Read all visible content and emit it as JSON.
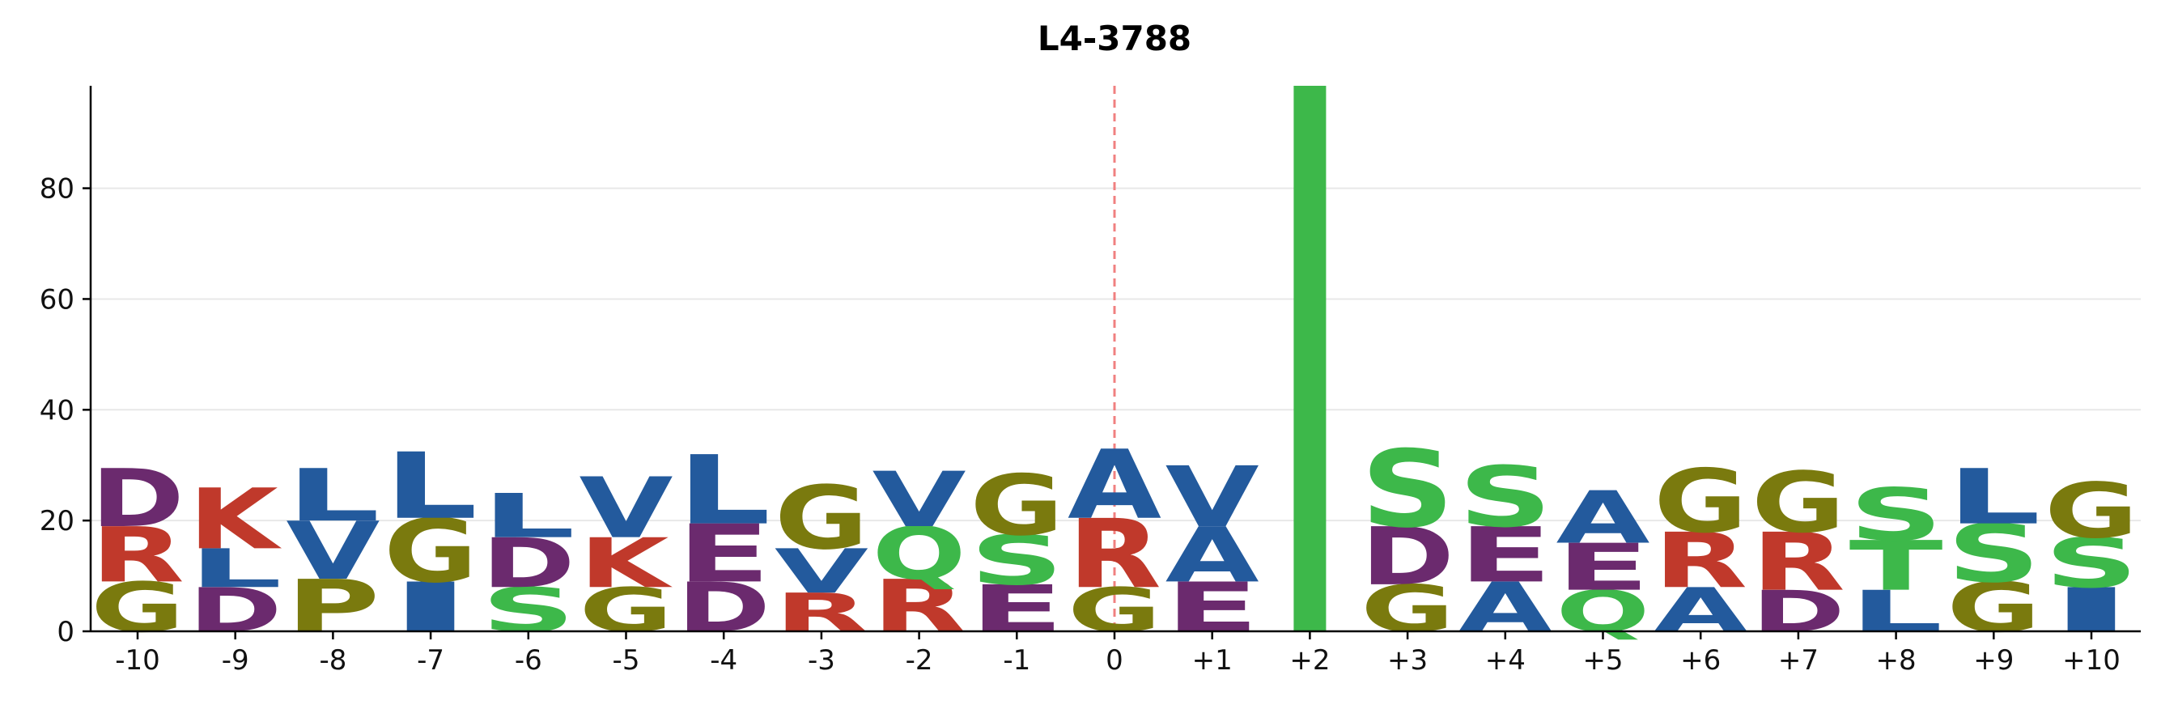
{
  "chart_data": {
    "type": "sequence_logo",
    "title": "L4-3788",
    "positions": [
      "-10",
      "-9",
      "-8",
      "-7",
      "-6",
      "-5",
      "-4",
      "-3",
      "-2",
      "-1",
      "0",
      "+1",
      "+2",
      "+3",
      "+4",
      "+5",
      "+6",
      "+7",
      "+8",
      "+9",
      "+10"
    ],
    "yticks": [
      0,
      20,
      40,
      60,
      80
    ],
    "ylim": [
      0,
      98.5
    ],
    "grid": true,
    "reference_position": "0",
    "stacks": [
      [
        {
          "aa": "G",
          "v": 9
        },
        {
          "aa": "R",
          "v": 10
        },
        {
          "aa": "D",
          "v": 10.5
        }
      ],
      [
        {
          "aa": "D",
          "v": 8
        },
        {
          "aa": "L",
          "v": 7
        },
        {
          "aa": "K",
          "v": 11
        }
      ],
      [
        {
          "aa": "P",
          "v": 9.5
        },
        {
          "aa": "V",
          "v": 10.5
        },
        {
          "aa": "L",
          "v": 9.5
        }
      ],
      [
        {
          "aa": "I",
          "v": 9
        },
        {
          "aa": "G",
          "v": 11.5
        },
        {
          "aa": "L",
          "v": 12
        }
      ],
      [
        {
          "aa": "S",
          "v": 8
        },
        {
          "aa": "D",
          "v": 9
        },
        {
          "aa": "L",
          "v": 8
        }
      ],
      [
        {
          "aa": "G",
          "v": 8
        },
        {
          "aa": "K",
          "v": 9
        },
        {
          "aa": "V",
          "v": 11
        }
      ],
      [
        {
          "aa": "D",
          "v": 9
        },
        {
          "aa": "E",
          "v": 10.5
        },
        {
          "aa": "L",
          "v": 12.5
        }
      ],
      [
        {
          "aa": "R",
          "v": 7
        },
        {
          "aa": "V",
          "v": 8
        },
        {
          "aa": "G",
          "v": 11.5
        }
      ],
      [
        {
          "aa": "R",
          "v": 9.5
        },
        {
          "aa": "Q",
          "v": 9.5
        },
        {
          "aa": "V",
          "v": 10
        }
      ],
      [
        {
          "aa": "E",
          "v": 8.5
        },
        {
          "aa": "S",
          "v": 9
        },
        {
          "aa": "G",
          "v": 11
        }
      ],
      [
        {
          "aa": "G",
          "v": 8
        },
        {
          "aa": "R",
          "v": 12.5
        },
        {
          "aa": "A",
          "v": 12.5
        }
      ],
      [
        {
          "aa": "E",
          "v": 9
        },
        {
          "aa": "A",
          "v": 10
        },
        {
          "aa": "V",
          "v": 11
        }
      ],
      [
        {
          "aa": "T",
          "v": 98.5
        }
      ],
      [
        {
          "aa": "G",
          "v": 8.5
        },
        {
          "aa": "D",
          "v": 10.5
        },
        {
          "aa": "S",
          "v": 14
        }
      ],
      [
        {
          "aa": "A",
          "v": 9
        },
        {
          "aa": "E",
          "v": 10
        },
        {
          "aa": "S",
          "v": 11
        }
      ],
      [
        {
          "aa": "Q",
          "v": 7.5
        },
        {
          "aa": "E",
          "v": 8.5
        },
        {
          "aa": "A",
          "v": 9.5
        }
      ],
      [
        {
          "aa": "A",
          "v": 8
        },
        {
          "aa": "R",
          "v": 10
        },
        {
          "aa": "G",
          "v": 11.5
        }
      ],
      [
        {
          "aa": "D",
          "v": 7.5
        },
        {
          "aa": "R",
          "v": 10.5
        },
        {
          "aa": "G",
          "v": 11
        }
      ],
      [
        {
          "aa": "L",
          "v": 7.5
        },
        {
          "aa": "T",
          "v": 9
        },
        {
          "aa": "S",
          "v": 9.5
        }
      ],
      [
        {
          "aa": "G",
          "v": 9
        },
        {
          "aa": "S",
          "v": 10.5
        },
        {
          "aa": "L",
          "v": 10
        }
      ],
      [
        {
          "aa": "I",
          "v": 8
        },
        {
          "aa": "S",
          "v": 9
        },
        {
          "aa": "G",
          "v": 10
        }
      ]
    ],
    "colors": {
      "A": "#235a9d",
      "V": "#235a9d",
      "L": "#235a9d",
      "I": "#235a9d",
      "M": "#235a9d",
      "F": "#235a9d",
      "W": "#235a9d",
      "P": "#7a7a0e",
      "G": "#7a7a0e",
      "S": "#3db84a",
      "T": "#3db84a",
      "Q": "#3db84a",
      "N": "#3db84a",
      "Y": "#3db84a",
      "C": "#3db84a",
      "D": "#6b2a6e",
      "E": "#6b2a6e",
      "K": "#c0392b",
      "R": "#c0392b",
      "H": "#c0392b"
    },
    "axis_color": "#000000",
    "grid_color": "#e8e8e8",
    "reference_line_color": "#f08080"
  }
}
